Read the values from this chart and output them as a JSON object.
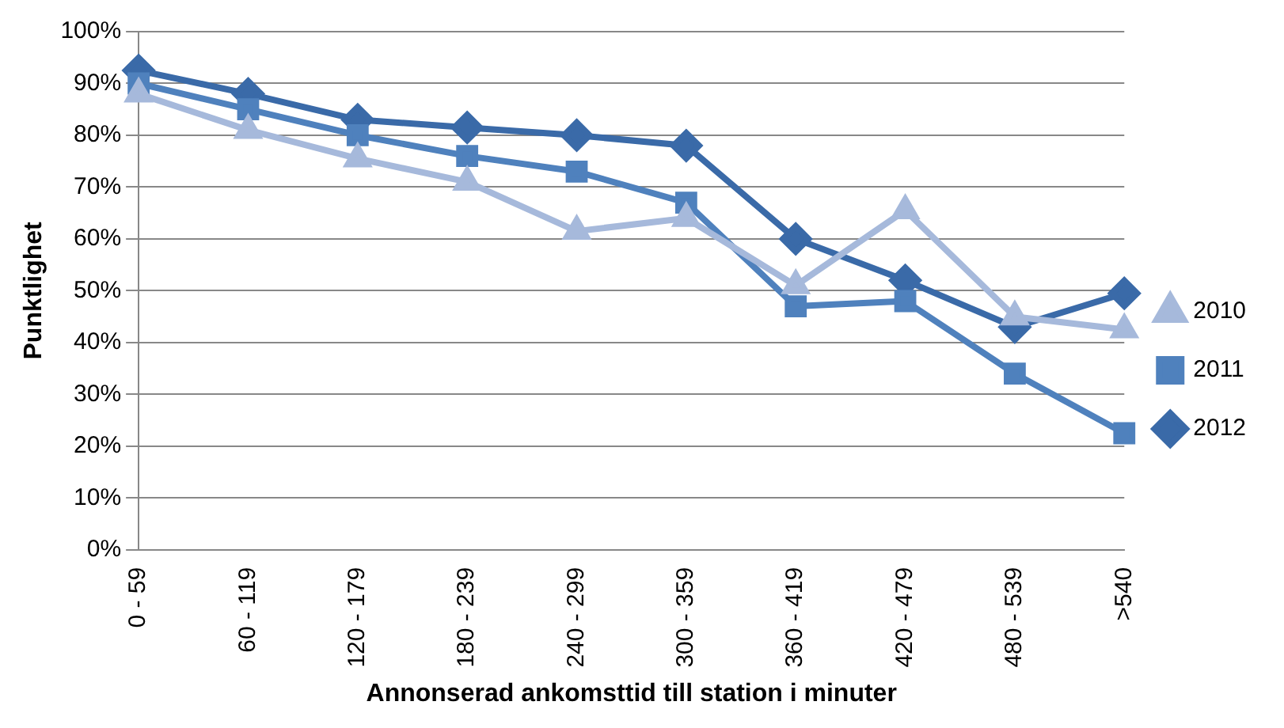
{
  "chart_data": {
    "type": "line",
    "xlabel": "Annonserad ankomsttid till station i minuter",
    "ylabel": "Punktlighet",
    "categories": [
      "0 - 59",
      "60 - 119",
      "120 - 179",
      "180 - 239",
      "240 - 299",
      "300 - 359",
      "360 - 419",
      "420 - 479",
      "480 - 539",
      ">540"
    ],
    "series": [
      {
        "name": "2012",
        "color": "#3a6aa8",
        "marker": "diamond",
        "values": [
          92.5,
          88,
          83,
          81.5,
          80,
          78,
          60,
          52,
          43,
          49.5
        ]
      },
      {
        "name": "2011",
        "color": "#4f81bd",
        "marker": "square",
        "values": [
          90,
          85,
          80,
          76,
          73,
          67,
          47,
          48,
          34,
          22.5
        ]
      },
      {
        "name": "2010",
        "color": "#a6b9db",
        "marker": "triangle",
        "values": [
          88,
          81,
          75.5,
          71,
          61.5,
          64,
          51,
          65.5,
          45,
          42.5
        ]
      }
    ],
    "ylim": [
      0,
      100
    ],
    "yticks": [
      {
        "value": 0,
        "label": "0%"
      },
      {
        "value": 10,
        "label": "10%"
      },
      {
        "value": 20,
        "label": "20%"
      },
      {
        "value": 30,
        "label": "30%"
      },
      {
        "value": 40,
        "label": "40%"
      },
      {
        "value": 50,
        "label": "50%"
      },
      {
        "value": 60,
        "label": "60%"
      },
      {
        "value": 70,
        "label": "70%"
      },
      {
        "value": 80,
        "label": "80%"
      },
      {
        "value": 90,
        "label": "90%"
      },
      {
        "value": 100,
        "label": "100%"
      }
    ],
    "grid": "y",
    "legend": "right",
    "line_style": "solid"
  }
}
